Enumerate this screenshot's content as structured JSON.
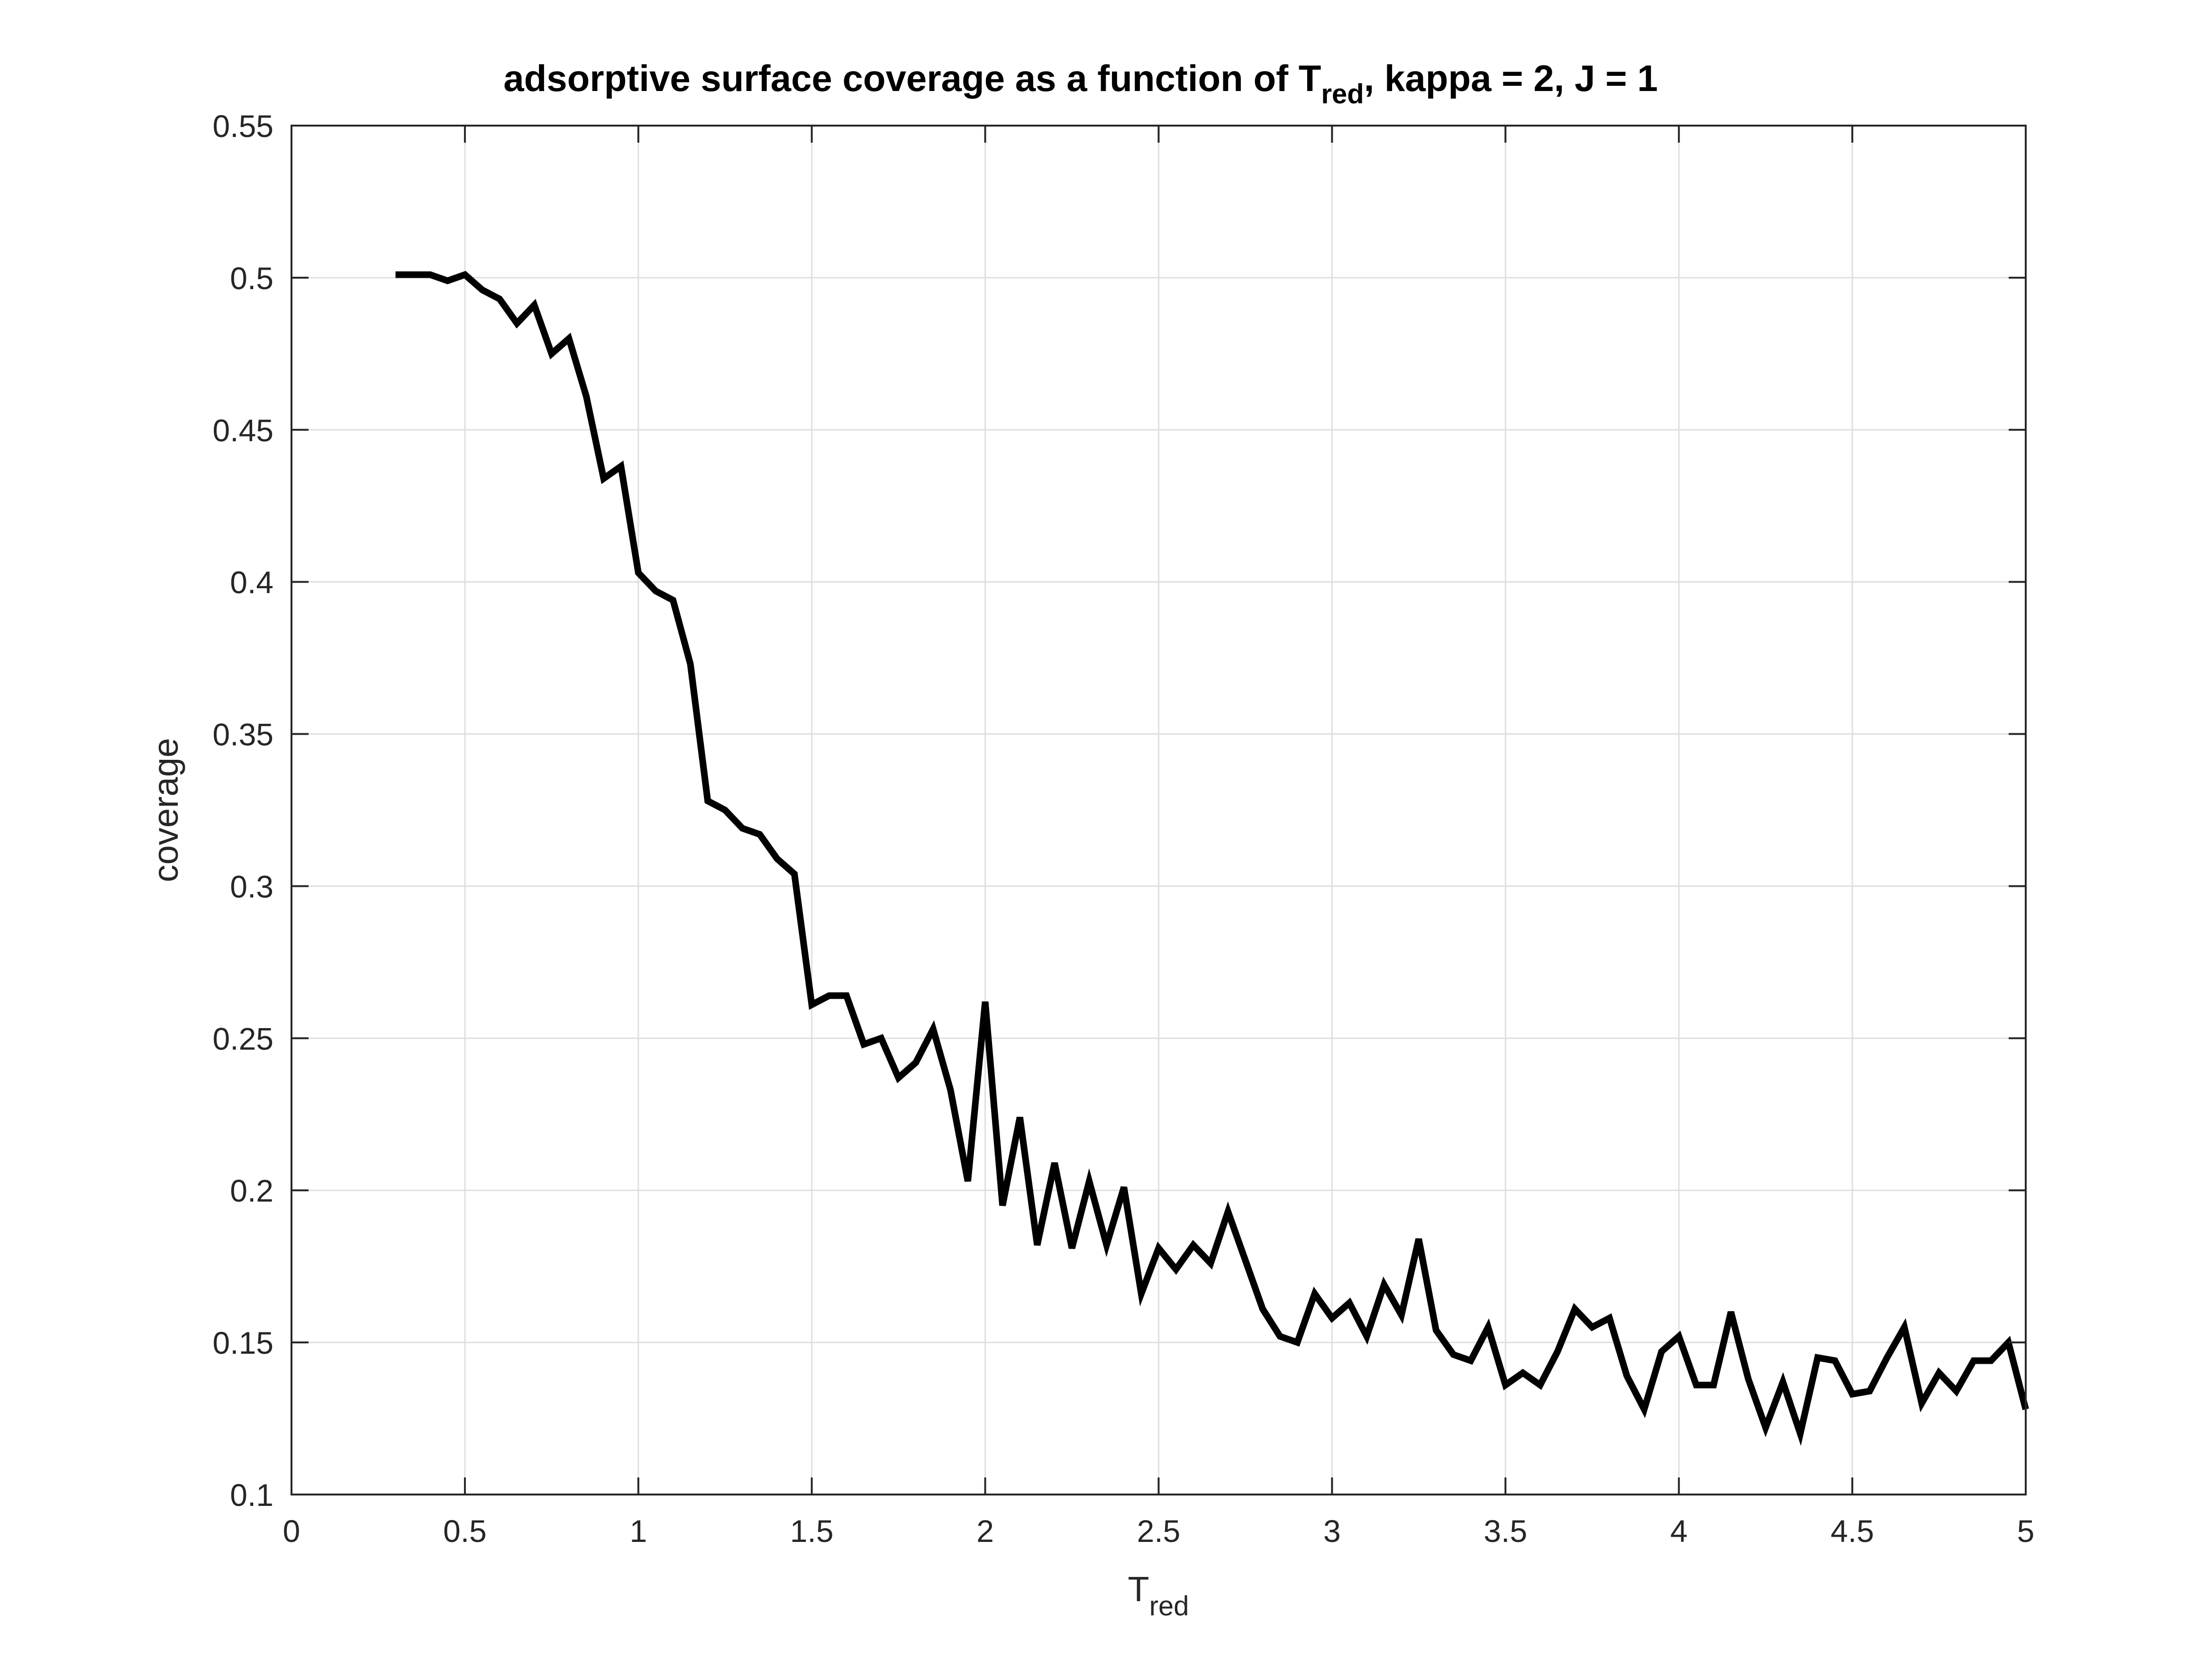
{
  "chart_data": {
    "type": "line",
    "title": {
      "prefix": "adsorptive surface coverage as a function of T",
      "subscript": "red",
      "suffix": ", kappa = 2, J = 1"
    },
    "xlabel": {
      "base": "T",
      "subscript": "red"
    },
    "ylabel": "coverage",
    "xlim": [
      0,
      5
    ],
    "ylim": [
      0.1,
      0.55
    ],
    "xticks": [
      0,
      0.5,
      1,
      1.5,
      2,
      2.5,
      3,
      3.5,
      4,
      4.5,
      5
    ],
    "xtick_labels": [
      "0",
      "0.5",
      "1",
      "1.5",
      "2",
      "2.5",
      "3",
      "3.5",
      "4",
      "4.5",
      "5"
    ],
    "yticks": [
      0.1,
      0.15,
      0.2,
      0.25,
      0.3,
      0.35,
      0.4,
      0.45,
      0.5,
      0.55
    ],
    "ytick_labels": [
      "0.1",
      "0.15",
      "0.2",
      "0.25",
      "0.3",
      "0.35",
      "0.4",
      "0.45",
      "0.5",
      "0.55"
    ],
    "grid": true,
    "line_color": "#000000",
    "series": [
      {
        "x": [
          0.3,
          0.35,
          0.4,
          0.45,
          0.5,
          0.55,
          0.6,
          0.65,
          0.7,
          0.75,
          0.8,
          0.85,
          0.9,
          0.95,
          1.0,
          1.05,
          1.1,
          1.15,
          1.2,
          1.25,
          1.3,
          1.35,
          1.4,
          1.45,
          1.5,
          1.55,
          1.6,
          1.65,
          1.7,
          1.75,
          1.8,
          1.85,
          1.9,
          1.95,
          2.0,
          2.05,
          2.1,
          2.15,
          2.2,
          2.25,
          2.3,
          2.35,
          2.4,
          2.45,
          2.5,
          2.55,
          2.6,
          2.65,
          2.7,
          2.75,
          2.8,
          2.85,
          2.9,
          2.95,
          3.0,
          3.05,
          3.1,
          3.15,
          3.2,
          3.25,
          3.3,
          3.35,
          3.4,
          3.45,
          3.5,
          3.55,
          3.6,
          3.65,
          3.7,
          3.75,
          3.8,
          3.85,
          3.9,
          3.95,
          4.0,
          4.05,
          4.1,
          4.15,
          4.2,
          4.25,
          4.3,
          4.35,
          4.4,
          4.45,
          4.5,
          4.55,
          4.6,
          4.65,
          4.7,
          4.75,
          4.8,
          4.85,
          4.9,
          4.95,
          5.0
        ],
        "y": [
          0.501,
          0.501,
          0.501,
          0.499,
          0.501,
          0.496,
          0.493,
          0.485,
          0.491,
          0.475,
          0.48,
          0.461,
          0.434,
          0.438,
          0.403,
          0.397,
          0.394,
          0.373,
          0.328,
          0.325,
          0.319,
          0.317,
          0.309,
          0.304,
          0.261,
          0.264,
          0.264,
          0.248,
          0.25,
          0.237,
          0.242,
          0.253,
          0.233,
          0.203,
          0.262,
          0.195,
          0.224,
          0.182,
          0.209,
          0.181,
          0.203,
          0.182,
          0.201,
          0.166,
          0.181,
          0.174,
          0.182,
          0.176,
          0.193,
          0.177,
          0.161,
          0.152,
          0.15,
          0.166,
          0.158,
          0.163,
          0.152,
          0.169,
          0.159,
          0.184,
          0.154,
          0.146,
          0.144,
          0.155,
          0.136,
          0.14,
          0.136,
          0.147,
          0.161,
          0.155,
          0.158,
          0.139,
          0.128,
          0.147,
          0.152,
          0.136,
          0.136,
          0.16,
          0.138,
          0.122,
          0.137,
          0.12,
          0.145,
          0.144,
          0.133,
          0.134,
          0.145,
          0.155,
          0.13,
          0.14,
          0.134,
          0.144,
          0.144,
          0.15,
          0.128
        ]
      }
    ]
  }
}
